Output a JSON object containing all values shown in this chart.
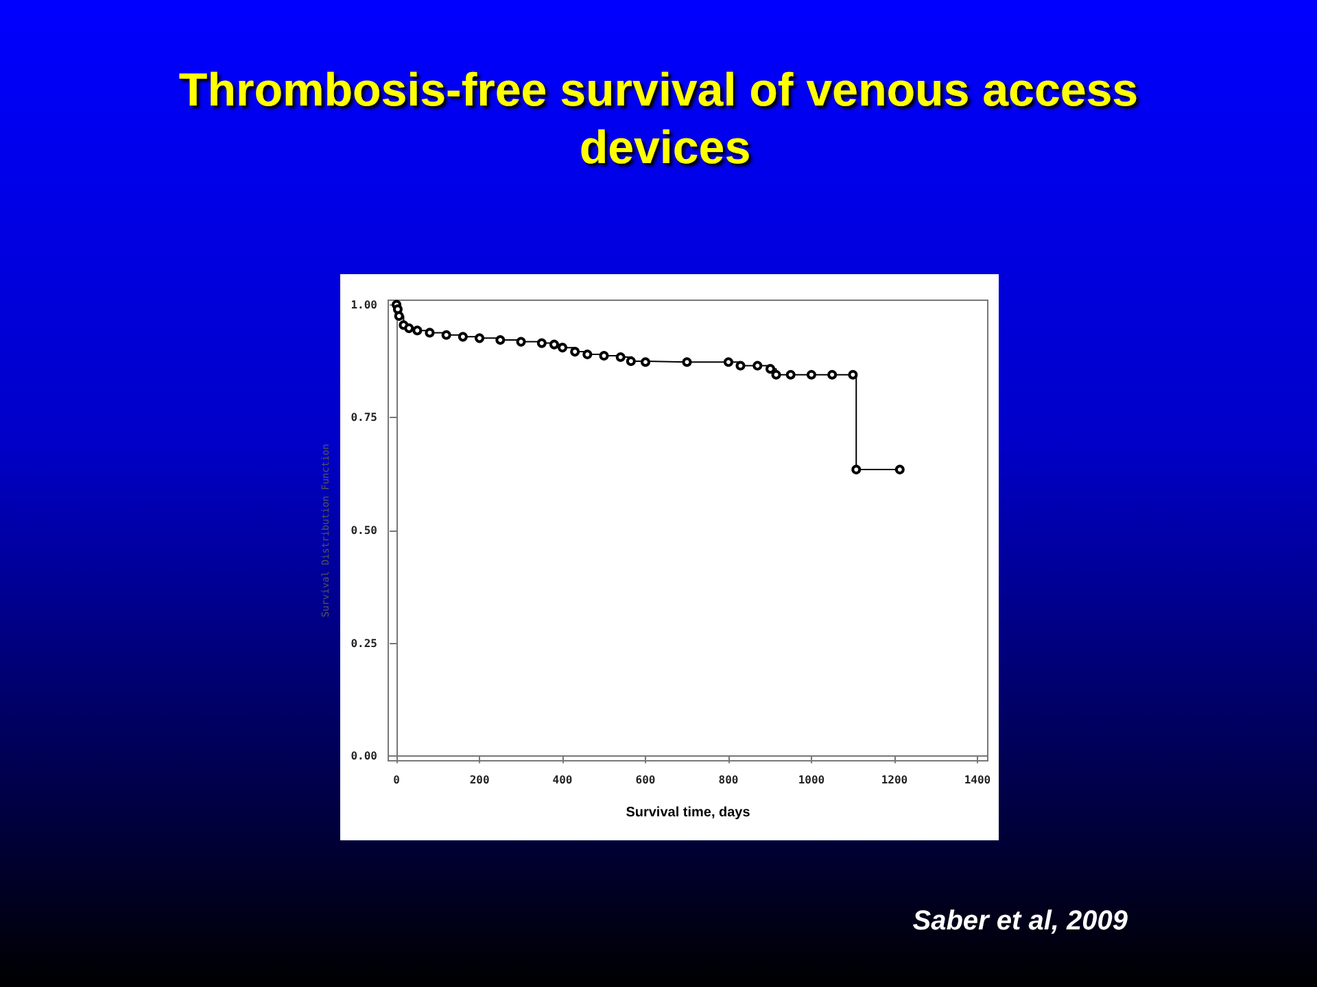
{
  "chart_data": {
    "type": "step",
    "title": "Thrombosis-free survival of venous access devices",
    "xlabel": "Survival time, days",
    "ylabel": "Survival Distribution Function",
    "annotations": [
      "Saber et al, 2009"
    ],
    "x": [
      0,
      3,
      6,
      17,
      30,
      50,
      80,
      120,
      160,
      200,
      250,
      300,
      350,
      380,
      400,
      430,
      460,
      500,
      540,
      565,
      600,
      700,
      800,
      829,
      870,
      901,
      915,
      950,
      1000,
      1050,
      1100,
      1108,
      1213
    ],
    "series": [
      {
        "color": "#000000",
        "values": [
          1.0,
          0.99,
          0.975,
          0.955,
          0.948,
          0.943,
          0.938,
          0.933,
          0.929,
          0.926,
          0.922,
          0.918,
          0.915,
          0.912,
          0.905,
          0.896,
          0.89,
          0.887,
          0.884,
          0.875,
          0.873,
          0.873,
          0.873,
          0.865,
          0.865,
          0.858,
          0.845,
          0.845,
          0.845,
          0.845,
          0.845,
          0.635,
          0.635
        ]
      }
    ],
    "xlim": [
      -20,
      1425
    ],
    "xticks": [
      0,
      200,
      400,
      600,
      800,
      1000,
      1200,
      1400
    ],
    "ylim": [
      -0.01,
      1.01
    ],
    "yticks": [
      {
        "value": 0,
        "label": "0.00"
      },
      {
        "value": 0.25,
        "label": "0.25"
      },
      {
        "value": 0.5,
        "label": "0.50"
      },
      {
        "value": 0.75,
        "label": "0.75"
      },
      {
        "value": 1,
        "label": "1.00"
      }
    ],
    "marker": "circle",
    "line_style": "solid"
  }
}
